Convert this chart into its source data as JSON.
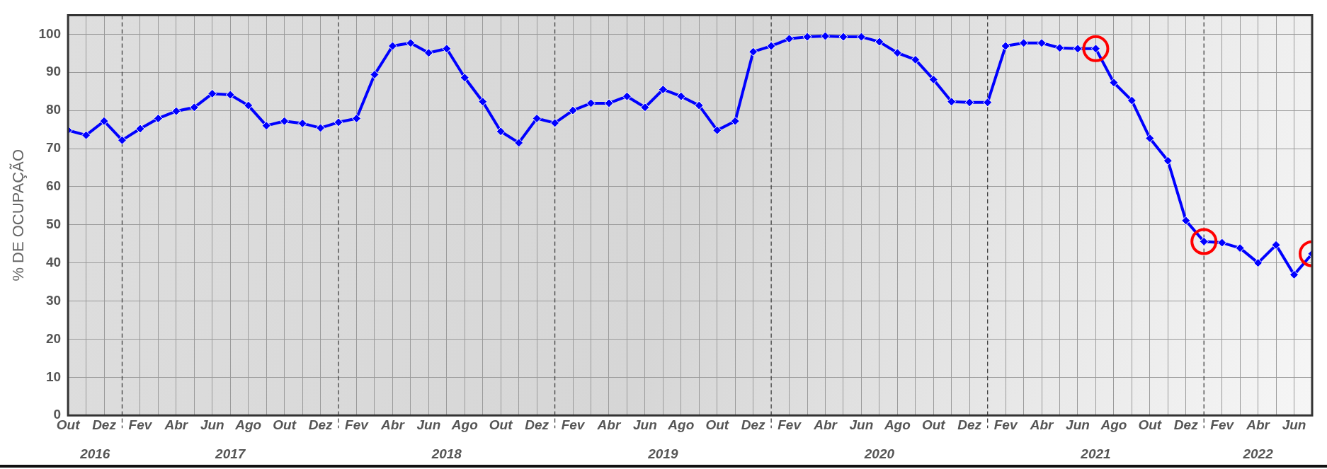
{
  "chart_data": {
    "type": "line",
    "ylabel": "% DE OCUPAÇÃO",
    "x": [
      "2016-10",
      "2016-11",
      "2016-12",
      "2017-01",
      "2017-02",
      "2017-03",
      "2017-04",
      "2017-05",
      "2017-06",
      "2017-07",
      "2017-08",
      "2017-09",
      "2017-10",
      "2017-11",
      "2017-12",
      "2018-01",
      "2018-02",
      "2018-03",
      "2018-04",
      "2018-05",
      "2018-06",
      "2018-07",
      "2018-08",
      "2018-09",
      "2018-10",
      "2018-11",
      "2018-12",
      "2019-01",
      "2019-02",
      "2019-03",
      "2019-04",
      "2019-05",
      "2019-06",
      "2019-07",
      "2019-08",
      "2019-09",
      "2019-10",
      "2019-11",
      "2019-12",
      "2020-01",
      "2020-02",
      "2020-03",
      "2020-04",
      "2020-05",
      "2020-06",
      "2020-07",
      "2020-08",
      "2020-09",
      "2020-10",
      "2020-11",
      "2020-12",
      "2021-01",
      "2021-02",
      "2021-03",
      "2021-04",
      "2021-05",
      "2021-06",
      "2021-07",
      "2021-08",
      "2021-09",
      "2021-10",
      "2021-11",
      "2021-12",
      "2022-01",
      "2022-02",
      "2022-03",
      "2022-04",
      "2022-05",
      "2022-06",
      "2022-07"
    ],
    "series": [
      {
        "color": "#0000ff",
        "marker": "diamond",
        "values": [
          74.8,
          73.5,
          77.2,
          72.2,
          75.2,
          77.9,
          79.8,
          80.8,
          84.4,
          84.1,
          81.3,
          76.0,
          77.2,
          76.6,
          75.4,
          76.9,
          77.9,
          89.4,
          96.9,
          97.7,
          95.1,
          96.2,
          88.6,
          82.3,
          74.5,
          71.5,
          77.9,
          76.7,
          80.0,
          81.9,
          81.9,
          83.7,
          80.8,
          85.5,
          83.7,
          81.3,
          74.8,
          77.2,
          95.4,
          96.9,
          98.8,
          99.3,
          99.5,
          99.3,
          99.3,
          98.0,
          95.1,
          93.3,
          88.1,
          82.3,
          82.1,
          82.1,
          96.9,
          97.7,
          97.7,
          96.4,
          96.2,
          96.2,
          87.3,
          82.6,
          72.7,
          66.8,
          51.1,
          45.6,
          45.3,
          43.9,
          40.0,
          44.7,
          36.9,
          42.4
        ]
      },
      {
        "type": "scatter",
        "color": "#ff0000",
        "marker": "circle",
        "x": [
          "2021-07",
          "2022-01",
          "2022-07"
        ],
        "values": [
          96.2,
          45.6,
          42.4
        ]
      }
    ],
    "xlim": [
      "2016-10",
      "2022-07"
    ],
    "xticks": [
      {
        "value": "2016-10",
        "label": "Out"
      },
      {
        "value": "2016-11",
        "label": null
      },
      {
        "value": "2016-12",
        "label": "Dez"
      },
      {
        "value": "2017-01",
        "label": null
      },
      {
        "value": "2017-02",
        "label": "Fev"
      },
      {
        "value": "2017-03",
        "label": null
      },
      {
        "value": "2017-04",
        "label": "Abr"
      },
      {
        "value": "2017-05",
        "label": null
      },
      {
        "value": "2017-06",
        "label": "Jun"
      },
      {
        "value": "2017-07",
        "label": null
      },
      {
        "value": "2017-08",
        "label": "Ago"
      },
      {
        "value": "2017-09",
        "label": null
      },
      {
        "value": "2017-10",
        "label": "Out"
      },
      {
        "value": "2017-11",
        "label": null
      },
      {
        "value": "2017-12",
        "label": "Dez"
      },
      {
        "value": "2018-01",
        "label": null
      },
      {
        "value": "2018-02",
        "label": "Fev"
      },
      {
        "value": "2018-03",
        "label": null
      },
      {
        "value": "2018-04",
        "label": "Abr"
      },
      {
        "value": "2018-05",
        "label": null
      },
      {
        "value": "2018-06",
        "label": "Jun"
      },
      {
        "value": "2018-07",
        "label": null
      },
      {
        "value": "2018-08",
        "label": "Ago"
      },
      {
        "value": "2018-09",
        "label": null
      },
      {
        "value": "2018-10",
        "label": "Out"
      },
      {
        "value": "2018-11",
        "label": null
      },
      {
        "value": "2018-12",
        "label": "Dez"
      },
      {
        "value": "2019-01",
        "label": null
      },
      {
        "value": "2019-02",
        "label": "Fev"
      },
      {
        "value": "2019-03",
        "label": null
      },
      {
        "value": "2019-04",
        "label": "Abr"
      },
      {
        "value": "2019-05",
        "label": null
      },
      {
        "value": "2019-06",
        "label": "Jun"
      },
      {
        "value": "2019-07",
        "label": null
      },
      {
        "value": "2019-08",
        "label": "Ago"
      },
      {
        "value": "2019-09",
        "label": null
      },
      {
        "value": "2019-10",
        "label": "Out"
      },
      {
        "value": "2019-11",
        "label": null
      },
      {
        "value": "2019-12",
        "label": "Dez"
      },
      {
        "value": "2020-01",
        "label": null
      },
      {
        "value": "2020-02",
        "label": "Fev"
      },
      {
        "value": "2020-03",
        "label": null
      },
      {
        "value": "2020-04",
        "label": "Abr"
      },
      {
        "value": "2020-05",
        "label": null
      },
      {
        "value": "2020-06",
        "label": "Jun"
      },
      {
        "value": "2020-07",
        "label": null
      },
      {
        "value": "2020-08",
        "label": "Ago"
      },
      {
        "value": "2020-09",
        "label": null
      },
      {
        "value": "2020-10",
        "label": "Out"
      },
      {
        "value": "2020-11",
        "label": null
      },
      {
        "value": "2020-12",
        "label": "Dez"
      },
      {
        "value": "2021-01",
        "label": null
      },
      {
        "value": "2021-02",
        "label": "Fev"
      },
      {
        "value": "2021-03",
        "label": null
      },
      {
        "value": "2021-04",
        "label": "Abr"
      },
      {
        "value": "2021-05",
        "label": null
      },
      {
        "value": "2021-06",
        "label": "Jun"
      },
      {
        "value": "2021-07",
        "label": null
      },
      {
        "value": "2021-08",
        "label": "Ago"
      },
      {
        "value": "2021-09",
        "label": null
      },
      {
        "value": "2021-10",
        "label": "Out"
      },
      {
        "value": "2021-11",
        "label": null
      },
      {
        "value": "2021-12",
        "label": "Dez"
      },
      {
        "value": "2022-01",
        "label": null
      },
      {
        "value": "2022-02",
        "label": "Fev"
      },
      {
        "value": "2022-03",
        "label": null
      },
      {
        "value": "2022-04",
        "label": "Abr"
      },
      {
        "value": "2022-05",
        "label": null
      },
      {
        "value": "2022-06",
        "label": "Jun"
      },
      {
        "value": "2022-07",
        "label": null
      }
    ],
    "ylim": [
      0,
      105
    ],
    "yticks": [
      0,
      10,
      20,
      30,
      40,
      50,
      60,
      70,
      80,
      90,
      100
    ],
    "grid": true,
    "legend": false,
    "line_style": "solid",
    "annotations": [
      "2016",
      "2017",
      "2018",
      "2019",
      "2020",
      "2021",
      "2022"
    ]
  }
}
